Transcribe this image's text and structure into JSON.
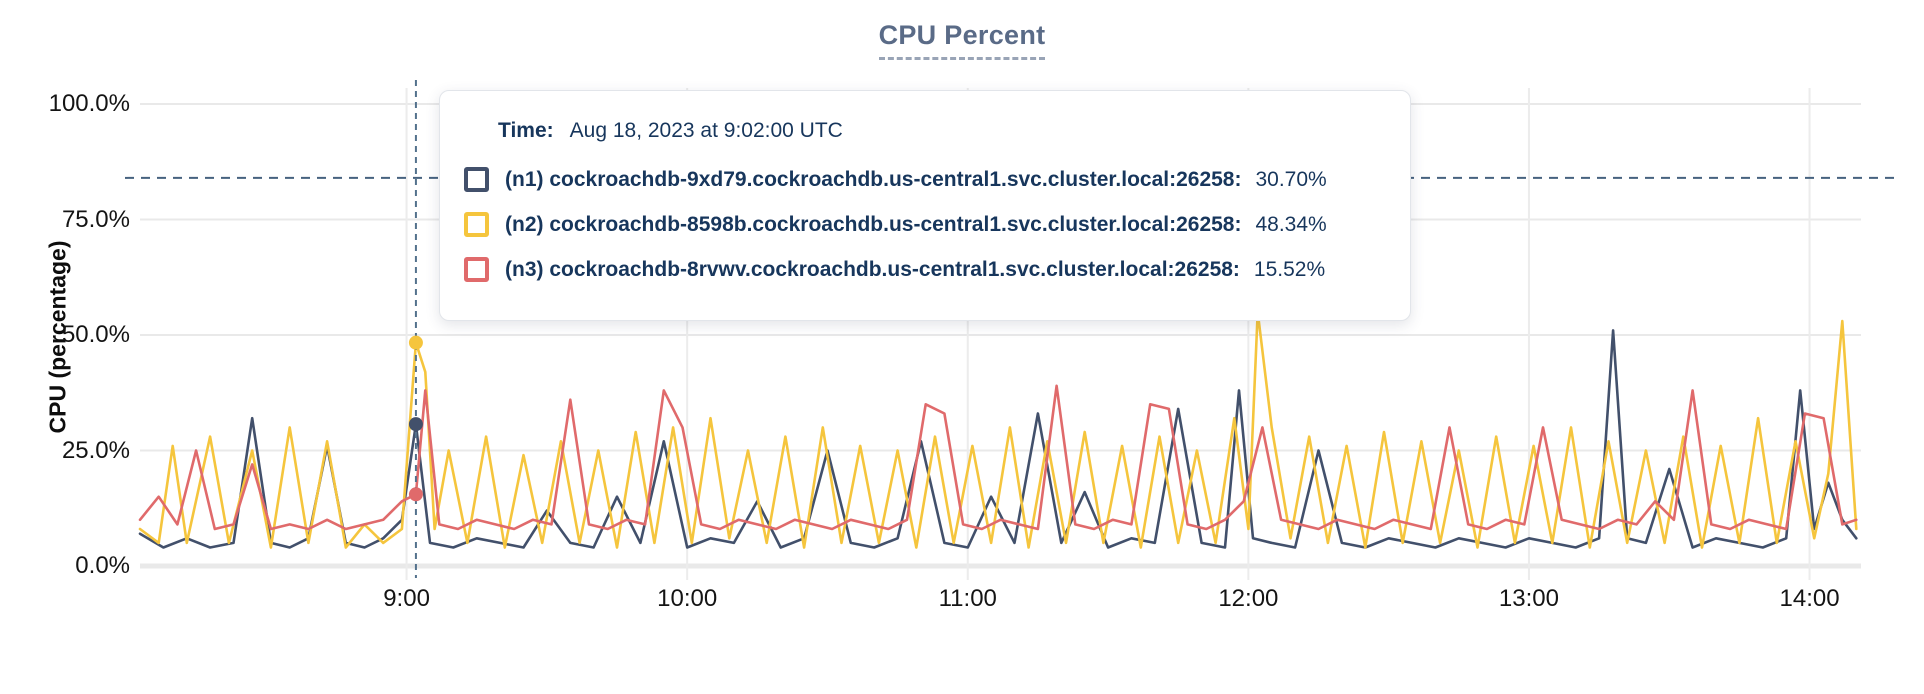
{
  "chart_data": {
    "type": "line",
    "title": "CPU Percent",
    "ylabel": "CPU (percentage)",
    "xlabel": "",
    "ylim": [
      0,
      100
    ],
    "x_domain_minutes": [
      483,
      851
    ],
    "grid": true,
    "legend_position": "tooltip-overlay",
    "grid_color": "#e9e9e9",
    "y_ticks": [
      {
        "label": "0.0%",
        "v": 0
      },
      {
        "label": "25.0%",
        "v": 25
      },
      {
        "label": "50.0%",
        "v": 50
      },
      {
        "label": "75.0%",
        "v": 75
      },
      {
        "label": "100.0%",
        "v": 100
      }
    ],
    "x_ticks": [
      {
        "label": "9:00",
        "t": 540
      },
      {
        "label": "10:00",
        "t": 600
      },
      {
        "label": "11:00",
        "t": 660
      },
      {
        "label": "12:00",
        "t": 720
      },
      {
        "label": "13:00",
        "t": 780
      },
      {
        "label": "14:00",
        "t": 840
      }
    ],
    "threshold_line": {
      "value_percent": 84,
      "style": "dashed",
      "color": "#46627f"
    },
    "hover": {
      "t_minutes": 542,
      "time": "9:02",
      "line_color": "#53718c",
      "values": [
        30.7,
        48.34,
        15.52
      ]
    },
    "series": [
      {
        "id": "n1",
        "name": "(n1) cockroachdb-9xd79.cockroachdb.us-central1.svc.cluster.local:26258",
        "color": "#42506b",
        "points": [
          [
            483,
            7
          ],
          [
            488,
            4
          ],
          [
            493,
            6
          ],
          [
            498,
            4
          ],
          [
            503,
            5
          ],
          [
            507,
            32
          ],
          [
            511,
            5
          ],
          [
            515,
            4
          ],
          [
            519,
            6
          ],
          [
            523,
            26
          ],
          [
            527,
            5
          ],
          [
            531,
            4
          ],
          [
            535,
            6
          ],
          [
            539,
            10
          ],
          [
            542,
            30.7
          ],
          [
            545,
            5
          ],
          [
            550,
            4
          ],
          [
            555,
            6
          ],
          [
            560,
            5
          ],
          [
            565,
            4
          ],
          [
            570,
            12
          ],
          [
            575,
            5
          ],
          [
            580,
            4
          ],
          [
            585,
            15
          ],
          [
            590,
            5
          ],
          [
            595,
            27
          ],
          [
            600,
            4
          ],
          [
            605,
            6
          ],
          [
            610,
            5
          ],
          [
            615,
            14
          ],
          [
            620,
            4
          ],
          [
            625,
            6
          ],
          [
            630,
            25
          ],
          [
            635,
            5
          ],
          [
            640,
            4
          ],
          [
            645,
            6
          ],
          [
            650,
            27
          ],
          [
            655,
            5
          ],
          [
            660,
            4
          ],
          [
            665,
            15
          ],
          [
            670,
            5
          ],
          [
            675,
            33
          ],
          [
            680,
            5
          ],
          [
            685,
            16
          ],
          [
            690,
            4
          ],
          [
            695,
            6
          ],
          [
            700,
            5
          ],
          [
            705,
            34
          ],
          [
            710,
            5
          ],
          [
            715,
            4
          ],
          [
            718,
            38
          ],
          [
            721,
            6
          ],
          [
            725,
            5
          ],
          [
            730,
            4
          ],
          [
            735,
            25
          ],
          [
            740,
            5
          ],
          [
            745,
            4
          ],
          [
            750,
            6
          ],
          [
            755,
            5
          ],
          [
            760,
            4
          ],
          [
            765,
            6
          ],
          [
            770,
            5
          ],
          [
            775,
            4
          ],
          [
            780,
            6
          ],
          [
            785,
            5
          ],
          [
            790,
            4
          ],
          [
            795,
            6
          ],
          [
            798,
            51
          ],
          [
            801,
            6
          ],
          [
            805,
            5
          ],
          [
            810,
            21
          ],
          [
            815,
            4
          ],
          [
            820,
            6
          ],
          [
            825,
            5
          ],
          [
            830,
            4
          ],
          [
            835,
            6
          ],
          [
            838,
            38
          ],
          [
            841,
            8
          ],
          [
            844,
            18
          ],
          [
            847,
            10
          ],
          [
            850,
            6
          ]
        ]
      },
      {
        "id": "n2",
        "name": "(n2) cockroachdb-8598b.cockroachdb.us-central1.svc.cluster.local:26258",
        "color": "#f5c53d",
        "points": [
          [
            483,
            8
          ],
          [
            487,
            5
          ],
          [
            490,
            26
          ],
          [
            493,
            5
          ],
          [
            498,
            28
          ],
          [
            502,
            5
          ],
          [
            507,
            25
          ],
          [
            511,
            4
          ],
          [
            515,
            30
          ],
          [
            519,
            5
          ],
          [
            523,
            27
          ],
          [
            527,
            4
          ],
          [
            531,
            9
          ],
          [
            535,
            5
          ],
          [
            539,
            8
          ],
          [
            542,
            48.34
          ],
          [
            544,
            42
          ],
          [
            546,
            8
          ],
          [
            549,
            25
          ],
          [
            553,
            5
          ],
          [
            557,
            28
          ],
          [
            561,
            4
          ],
          [
            565,
            24
          ],
          [
            569,
            5
          ],
          [
            573,
            27
          ],
          [
            577,
            5
          ],
          [
            581,
            25
          ],
          [
            585,
            4
          ],
          [
            589,
            29
          ],
          [
            593,
            5
          ],
          [
            597,
            30
          ],
          [
            601,
            5
          ],
          [
            605,
            32
          ],
          [
            609,
            6
          ],
          [
            613,
            25
          ],
          [
            617,
            5
          ],
          [
            621,
            28
          ],
          [
            625,
            4
          ],
          [
            629,
            30
          ],
          [
            633,
            5
          ],
          [
            637,
            26
          ],
          [
            641,
            5
          ],
          [
            645,
            25
          ],
          [
            649,
            4
          ],
          [
            653,
            28
          ],
          [
            657,
            5
          ],
          [
            661,
            26
          ],
          [
            665,
            5
          ],
          [
            669,
            30
          ],
          [
            673,
            4
          ],
          [
            677,
            27
          ],
          [
            681,
            5
          ],
          [
            685,
            29
          ],
          [
            689,
            5
          ],
          [
            693,
            26
          ],
          [
            697,
            4
          ],
          [
            701,
            28
          ],
          [
            705,
            5
          ],
          [
            709,
            25
          ],
          [
            713,
            5
          ],
          [
            717,
            32
          ],
          [
            720,
            8
          ],
          [
            722,
            55
          ],
          [
            725,
            30
          ],
          [
            729,
            6
          ],
          [
            733,
            28
          ],
          [
            737,
            5
          ],
          [
            741,
            26
          ],
          [
            745,
            4
          ],
          [
            749,
            29
          ],
          [
            753,
            5
          ],
          [
            757,
            27
          ],
          [
            761,
            5
          ],
          [
            765,
            25
          ],
          [
            769,
            4
          ],
          [
            773,
            28
          ],
          [
            777,
            5
          ],
          [
            781,
            26
          ],
          [
            785,
            5
          ],
          [
            789,
            30
          ],
          [
            793,
            4
          ],
          [
            797,
            27
          ],
          [
            801,
            5
          ],
          [
            805,
            25
          ],
          [
            809,
            5
          ],
          [
            813,
            28
          ],
          [
            817,
            4
          ],
          [
            821,
            26
          ],
          [
            825,
            5
          ],
          [
            829,
            32
          ],
          [
            833,
            5
          ],
          [
            837,
            27
          ],
          [
            841,
            6
          ],
          [
            844,
            20
          ],
          [
            847,
            53
          ],
          [
            850,
            8
          ]
        ]
      },
      {
        "id": "n3",
        "name": "(n3) cockroachdb-8rvwv.cockroachdb.us-central1.svc.cluster.local:26258",
        "color": "#e06a6b",
        "points": [
          [
            483,
            10
          ],
          [
            487,
            15
          ],
          [
            491,
            9
          ],
          [
            495,
            25
          ],
          [
            499,
            8
          ],
          [
            503,
            9
          ],
          [
            507,
            22
          ],
          [
            511,
            8
          ],
          [
            515,
            9
          ],
          [
            519,
            8
          ],
          [
            523,
            10
          ],
          [
            527,
            8
          ],
          [
            531,
            9
          ],
          [
            535,
            10
          ],
          [
            539,
            14
          ],
          [
            542,
            15.52
          ],
          [
            544,
            38
          ],
          [
            547,
            9
          ],
          [
            551,
            8
          ],
          [
            555,
            10
          ],
          [
            559,
            9
          ],
          [
            563,
            8
          ],
          [
            567,
            10
          ],
          [
            571,
            9
          ],
          [
            575,
            36
          ],
          [
            579,
            9
          ],
          [
            583,
            8
          ],
          [
            587,
            10
          ],
          [
            591,
            9
          ],
          [
            595,
            38
          ],
          [
            599,
            30
          ],
          [
            603,
            9
          ],
          [
            607,
            8
          ],
          [
            611,
            10
          ],
          [
            615,
            9
          ],
          [
            619,
            8
          ],
          [
            623,
            10
          ],
          [
            627,
            9
          ],
          [
            631,
            8
          ],
          [
            635,
            10
          ],
          [
            639,
            9
          ],
          [
            643,
            8
          ],
          [
            647,
            10
          ],
          [
            651,
            35
          ],
          [
            655,
            33
          ],
          [
            659,
            9
          ],
          [
            663,
            8
          ],
          [
            667,
            10
          ],
          [
            671,
            9
          ],
          [
            675,
            8
          ],
          [
            679,
            39
          ],
          [
            683,
            9
          ],
          [
            687,
            8
          ],
          [
            691,
            10
          ],
          [
            695,
            9
          ],
          [
            699,
            35
          ],
          [
            703,
            34
          ],
          [
            707,
            9
          ],
          [
            711,
            8
          ],
          [
            715,
            10
          ],
          [
            719,
            14
          ],
          [
            723,
            30
          ],
          [
            727,
            10
          ],
          [
            731,
            9
          ],
          [
            735,
            8
          ],
          [
            739,
            10
          ],
          [
            743,
            9
          ],
          [
            747,
            8
          ],
          [
            751,
            10
          ],
          [
            755,
            9
          ],
          [
            759,
            8
          ],
          [
            763,
            30
          ],
          [
            767,
            9
          ],
          [
            771,
            8
          ],
          [
            775,
            10
          ],
          [
            779,
            9
          ],
          [
            783,
            30
          ],
          [
            787,
            10
          ],
          [
            791,
            9
          ],
          [
            795,
            8
          ],
          [
            799,
            10
          ],
          [
            803,
            9
          ],
          [
            807,
            14
          ],
          [
            811,
            10
          ],
          [
            815,
            38
          ],
          [
            819,
            9
          ],
          [
            823,
            8
          ],
          [
            827,
            10
          ],
          [
            831,
            9
          ],
          [
            835,
            8
          ],
          [
            839,
            33
          ],
          [
            843,
            32
          ],
          [
            847,
            9
          ],
          [
            850,
            10
          ]
        ]
      }
    ]
  },
  "tooltip": {
    "time_label": "Time:",
    "time_value": "Aug 18, 2023 at 9:02:00 UTC",
    "rows": [
      {
        "label": "(n1) cockroachdb-9xd79.cockroachdb.us-central1.svc.cluster.local:26258:",
        "value": "30.70%"
      },
      {
        "label": "(n2) cockroachdb-8598b.cockroachdb.us-central1.svc.cluster.local:26258:",
        "value": "48.34%"
      },
      {
        "label": "(n3) cockroachdb-8rvwv.cockroachdb.us-central1.svc.cluster.local:26258:",
        "value": "15.52%"
      }
    ]
  }
}
